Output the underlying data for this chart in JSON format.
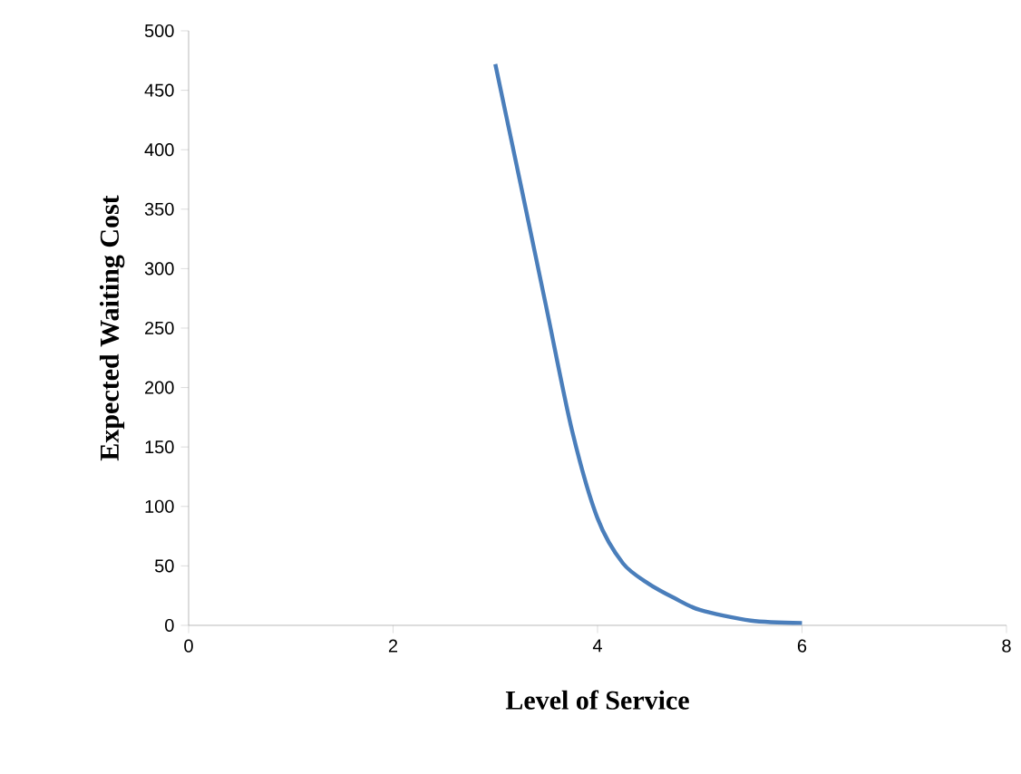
{
  "chart_data": {
    "type": "line",
    "xlabel": "Level of Service",
    "ylabel": "Expected Waiting Cost",
    "xlim": [
      0,
      8
    ],
    "xticks": [
      0,
      2,
      4,
      6,
      8
    ],
    "ylim": [
      0,
      500
    ],
    "yticks": [
      0,
      50,
      100,
      150,
      200,
      250,
      300,
      350,
      400,
      450,
      500
    ],
    "grid": false,
    "legend": false,
    "marker": "none",
    "series": [
      {
        "color": "#4a7ebb",
        "x": [
          3,
          3.25,
          3.5,
          3.75,
          4,
          4.25,
          4.5,
          4.75,
          5,
          5.5,
          6
        ],
        "values": [
          472,
          370,
          267,
          164,
          90,
          52,
          35,
          23,
          13,
          4,
          2
        ]
      }
    ]
  }
}
